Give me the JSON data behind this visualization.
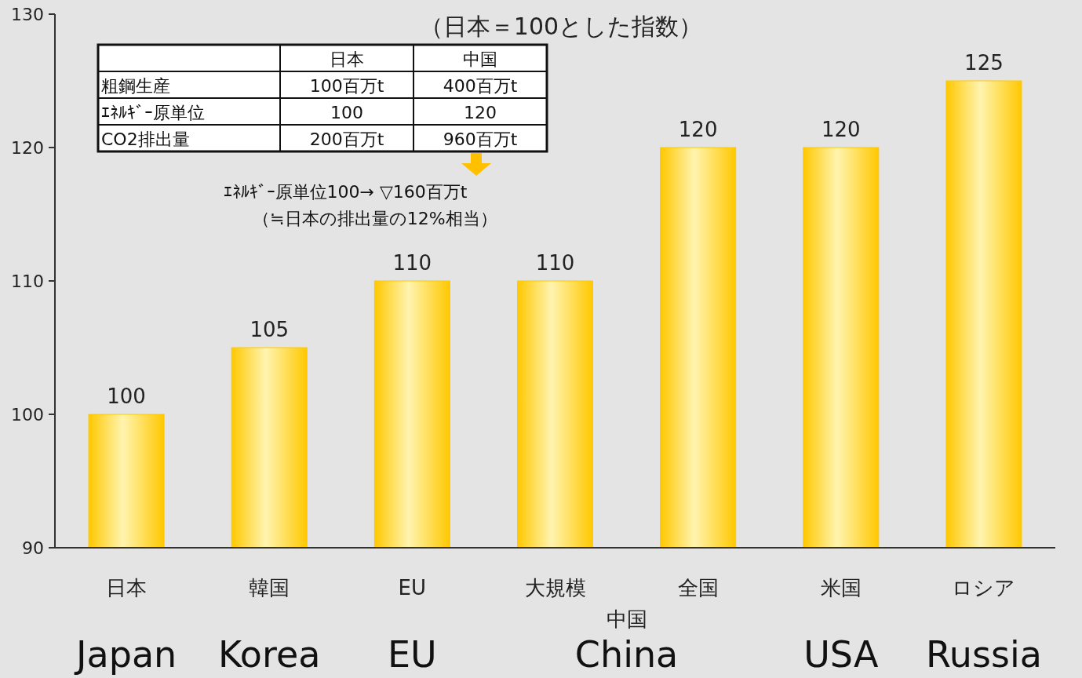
{
  "chart_data": {
    "type": "bar",
    "title": "（日本＝100とした指数）",
    "categories": [
      "日本",
      "韓国",
      "EU",
      "大規模",
      "全国",
      "米国",
      "ロシア"
    ],
    "values": [
      100,
      105,
      110,
      110,
      120,
      120,
      125
    ],
    "color": "#ffc800",
    "data_labels": true,
    "grid": false,
    "ylim": [
      90,
      130
    ],
    "yticks": [
      90,
      100,
      110,
      120,
      130
    ],
    "annotations": [
      "中国",
      "Japan",
      "Korea",
      "EU",
      "China",
      "USA",
      "Russia",
      "日本",
      "中国",
      "粗鋼生産",
      "100百万t",
      "400百万t",
      "ｴﾈﾙｷﾞｰ原単位",
      "100",
      "120",
      "CO2排出量",
      "200百万t",
      "960百万t",
      "ｴﾈﾙｷﾞｰ原単位100→ ▽160百万t",
      "（≒日本の排出量の12%相当）"
    ]
  }
}
